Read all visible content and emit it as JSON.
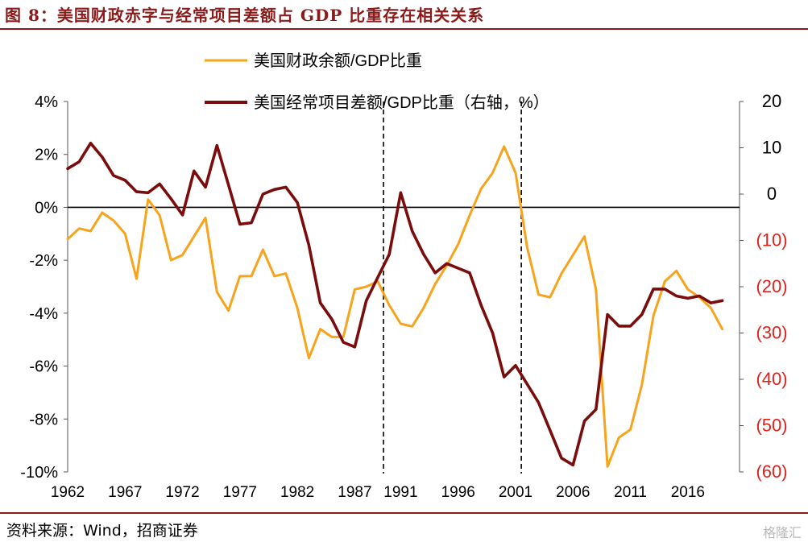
{
  "header": {
    "title": "图 8：美国财政赤字与经常项目差额占 GDP 比重存在相关关系"
  },
  "footer": {
    "source": "资料来源：Wind，招商证券",
    "watermark": "格隆汇"
  },
  "colors": {
    "fiscal": "#F7A31B",
    "current": "#7B0C0C",
    "right_axis": "#E0201A",
    "zero_line": "#000000",
    "dash": "#000000"
  },
  "chart_data": {
    "type": "line",
    "title": "",
    "x_ticks": [
      1962,
      1967,
      1972,
      1977,
      1982,
      1987,
      1991,
      1996,
      2001,
      2006,
      2011,
      2016
    ],
    "y_left": {
      "min": -10,
      "max": 4,
      "ticks": [
        4,
        2,
        0,
        -2,
        -4,
        -6,
        -8,
        -10
      ],
      "tick_labels": [
        "4%",
        "2%",
        "0%",
        "-2%",
        "-4%",
        "-6%",
        "-8%",
        "-10%"
      ]
    },
    "y_right": {
      "min": -60,
      "max": 20,
      "ticks": [
        20,
        10,
        0,
        -10,
        -20,
        -30,
        -40,
        -50,
        -60
      ],
      "tick_labels": [
        "20",
        "10",
        "0",
        "(10)",
        "(20)",
        "(30)",
        "(40)",
        "(50)",
        "(60)"
      ]
    },
    "vertical_dashed_lines_x": [
      1989.5,
      2001.5
    ],
    "legend": [
      {
        "name": "美国财政余额/GDP比重",
        "series": "fiscal"
      },
      {
        "name": "美国经常项目差额/GDP比重（右轴，%）",
        "series": "current"
      }
    ],
    "series": [
      {
        "name": "美国财政余额/GDP比重",
        "axis": "left",
        "x": [
          1962,
          1963,
          1964,
          1965,
          1966,
          1967,
          1968,
          1969,
          1970,
          1971,
          1972,
          1973,
          1974,
          1975,
          1976,
          1977,
          1978,
          1979,
          1980,
          1981,
          1982,
          1983,
          1984,
          1985,
          1986,
          1987,
          1988,
          1989,
          1990,
          1991,
          1992,
          1993,
          1994,
          1995,
          1996,
          1997,
          1998,
          1999,
          2000,
          2001,
          2002,
          2003,
          2004,
          2005,
          2006,
          2007,
          2008,
          2009,
          2010,
          2011,
          2012,
          2013,
          2014,
          2015,
          2016,
          2017,
          2018,
          2019
        ],
        "values": [
          -1.2,
          -0.8,
          -0.9,
          -0.2,
          -0.5,
          -1.0,
          -2.7,
          0.3,
          -0.3,
          -2.0,
          -1.8,
          -1.1,
          -0.4,
          -3.2,
          -3.9,
          -2.6,
          -2.6,
          -1.6,
          -2.6,
          -2.5,
          -3.8,
          -5.7,
          -4.6,
          -4.9,
          -4.9,
          -3.1,
          -3.0,
          -2.8,
          -3.7,
          -4.4,
          -4.5,
          -3.8,
          -2.9,
          -2.2,
          -1.4,
          -0.3,
          0.7,
          1.3,
          2.3,
          1.3,
          -1.5,
          -3.3,
          -3.4,
          -2.5,
          -1.8,
          -1.1,
          -3.1,
          -9.8,
          -8.7,
          -8.4,
          -6.7,
          -4.1,
          -2.8,
          -2.4,
          -3.1,
          -3.4,
          -3.8,
          -4.6
        ]
      },
      {
        "name": "美国经常项目差额/GDP比重（右轴，%）",
        "axis": "right",
        "x": [
          1962,
          1963,
          1964,
          1965,
          1966,
          1967,
          1968,
          1969,
          1970,
          1971,
          1972,
          1973,
          1974,
          1975,
          1976,
          1977,
          1978,
          1979,
          1980,
          1981,
          1982,
          1983,
          1984,
          1985,
          1986,
          1987,
          1988,
          1989,
          1990,
          1991,
          1992,
          1993,
          1994,
          1995,
          1996,
          1997,
          1998,
          1999,
          2000,
          2001,
          2002,
          2003,
          2004,
          2005,
          2006,
          2007,
          2008,
          2009,
          2010,
          2011,
          2012,
          2013,
          2014,
          2015,
          2016,
          2017,
          2018,
          2019
        ],
        "values": [
          5.5,
          7,
          11,
          8,
          4,
          3,
          0.5,
          0.3,
          2.2,
          -1,
          -4.5,
          5,
          1.5,
          10.5,
          2,
          -6.5,
          -6.2,
          0,
          1,
          1.5,
          -1.8,
          -11,
          -23.5,
          -27,
          -32,
          -33,
          -23,
          -18,
          -13,
          0.3,
          -8,
          -13,
          -17,
          -15,
          -16,
          -17,
          -24,
          -30,
          -39.5,
          -37,
          -41,
          -45,
          -51,
          -57,
          -58.5,
          -49,
          -46.5,
          -26,
          -28.5,
          -28.5,
          -26,
          -20.5,
          -20.5,
          -22,
          -22.5,
          -22,
          -23.5,
          -23
        ]
      }
    ]
  }
}
